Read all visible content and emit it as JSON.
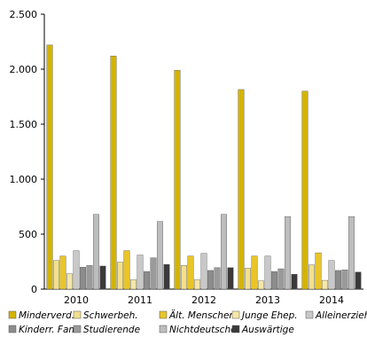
{
  "chart_data": {
    "type": "bar",
    "categories": [
      "2010",
      "2011",
      "2012",
      "2013",
      "2014"
    ],
    "ylim": [
      0,
      2500
    ],
    "yticks": [
      0,
      500,
      1000,
      1500,
      2000,
      2500
    ],
    "ytick_labels": [
      "0",
      "500",
      "1.000",
      "1.500",
      "2.000",
      "2.500"
    ],
    "legend_position": "bottom",
    "grid": false,
    "series": [
      {
        "name": "Minderverd.",
        "color": "#D4B400",
        "values": [
          2220,
          2120,
          1990,
          1815,
          1800
        ]
      },
      {
        "name": "Schwerbeh.",
        "color": "#F2E08C",
        "values": [
          260,
          245,
          215,
          190,
          220
        ]
      },
      {
        "name": "Ält. Menschen",
        "color": "#E8C52A",
        "values": [
          300,
          350,
          300,
          300,
          330
        ]
      },
      {
        "name": "Junge Ehep.",
        "color": "#F5E7A6",
        "values": [
          140,
          85,
          85,
          75,
          80
        ]
      },
      {
        "name": "Alleinerzieh",
        "color": "#C8C8C8",
        "values": [
          350,
          310,
          325,
          300,
          260
        ]
      },
      {
        "name": "Kinderr. Fam.",
        "color": "#8C8C8C",
        "values": [
          200,
          160,
          170,
          160,
          170
        ]
      },
      {
        "name": "Studierende",
        "color": "#9A9A9A",
        "values": [
          215,
          285,
          195,
          185,
          175
        ]
      },
      {
        "name": "Nichtdeutsche",
        "color": "#BDBDBD",
        "values": [
          680,
          615,
          680,
          660,
          660
        ]
      },
      {
        "name": "Auswärtige",
        "color": "#3A3A3A",
        "values": [
          210,
          225,
          195,
          135,
          155
        ]
      }
    ]
  }
}
